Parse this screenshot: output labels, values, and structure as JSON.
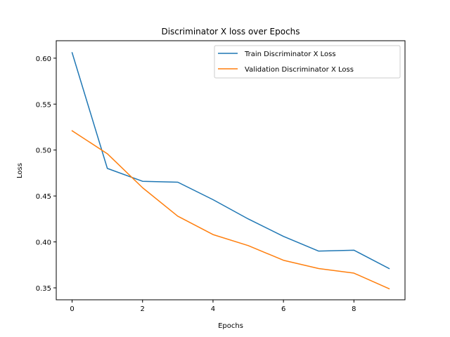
{
  "chart_data": {
    "type": "line",
    "title": "Discriminator X loss over Epochs",
    "xlabel": "Epochs",
    "ylabel": "Loss",
    "xlim": [
      -0.45,
      9.45
    ],
    "ylim": [
      0.337,
      0.619
    ],
    "xticks": [
      0,
      2,
      4,
      6,
      8
    ],
    "yticks": [
      0.35,
      0.4,
      0.45,
      0.5,
      0.55,
      0.6
    ],
    "ytick_labels": [
      "0.35",
      "0.40",
      "0.45",
      "0.50",
      "0.55",
      "0.60"
    ],
    "grid": false,
    "legend_position": "top-right",
    "x": [
      0,
      1,
      2,
      3,
      4,
      5,
      6,
      7,
      8,
      9
    ],
    "series": [
      {
        "name": "Train Discriminator X Loss",
        "color": "#1f77b4",
        "values": [
          0.606,
          0.48,
          0.466,
          0.465,
          0.446,
          0.425,
          0.406,
          0.39,
          0.391,
          0.371
        ]
      },
      {
        "name": "Validation Discriminator X Loss",
        "color": "#ff7f0e",
        "values": [
          0.521,
          0.496,
          0.459,
          0.428,
          0.408,
          0.396,
          0.38,
          0.371,
          0.366,
          0.349
        ]
      }
    ]
  }
}
